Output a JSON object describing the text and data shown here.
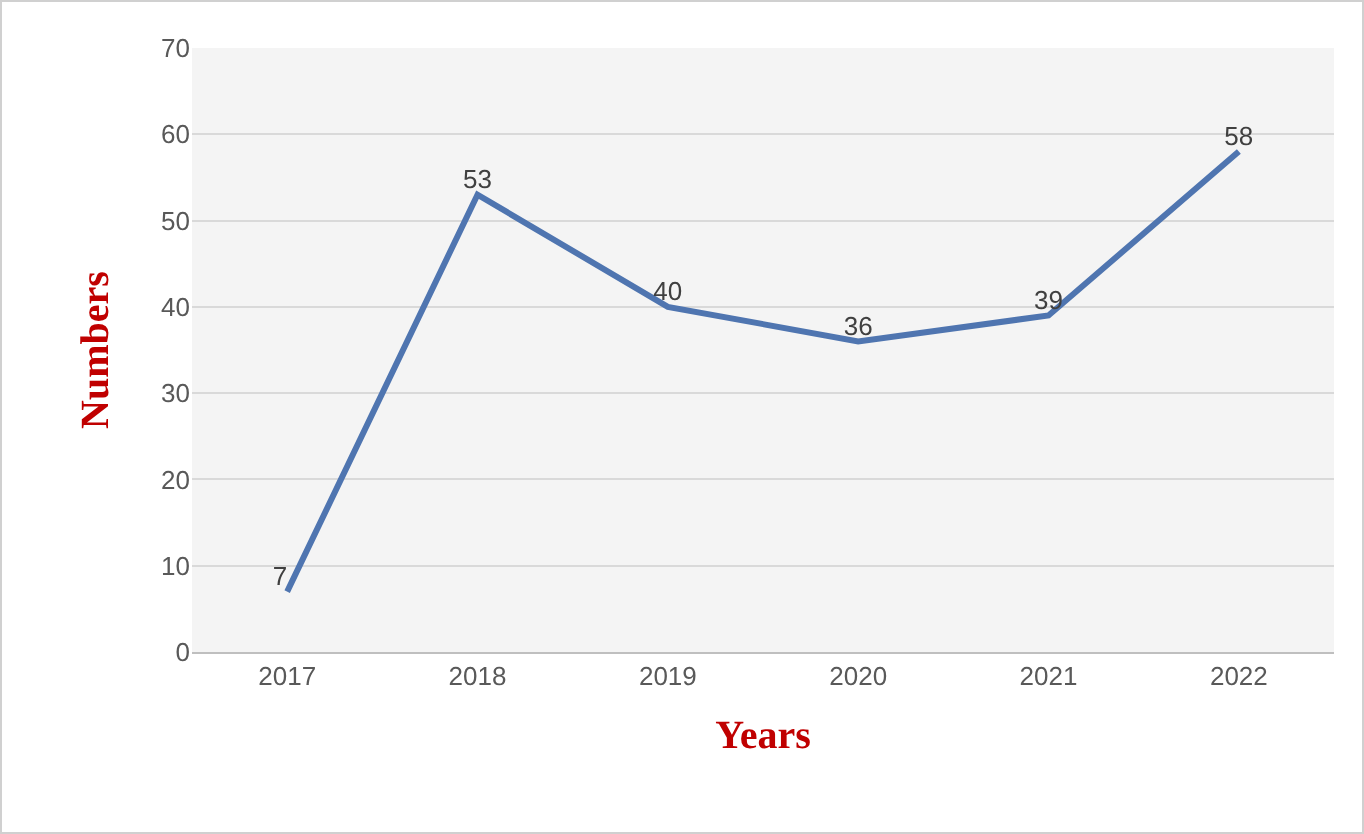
{
  "chart_data": {
    "type": "line",
    "xlabel": "Years",
    "ylabel": "Numbers",
    "categories": [
      "2017",
      "2018",
      "2019",
      "2020",
      "2021",
      "2022"
    ],
    "series": [
      {
        "color": "#4f75b0",
        "values": [
          7,
          53,
          40,
          36,
          39,
          58
        ]
      }
    ],
    "ylim": [
      0,
      70
    ],
    "yticks": [
      0,
      10,
      20,
      30,
      40,
      50,
      60,
      70
    ],
    "grid": "y",
    "data_labels": true,
    "marker": "none",
    "line_style": "solid"
  }
}
